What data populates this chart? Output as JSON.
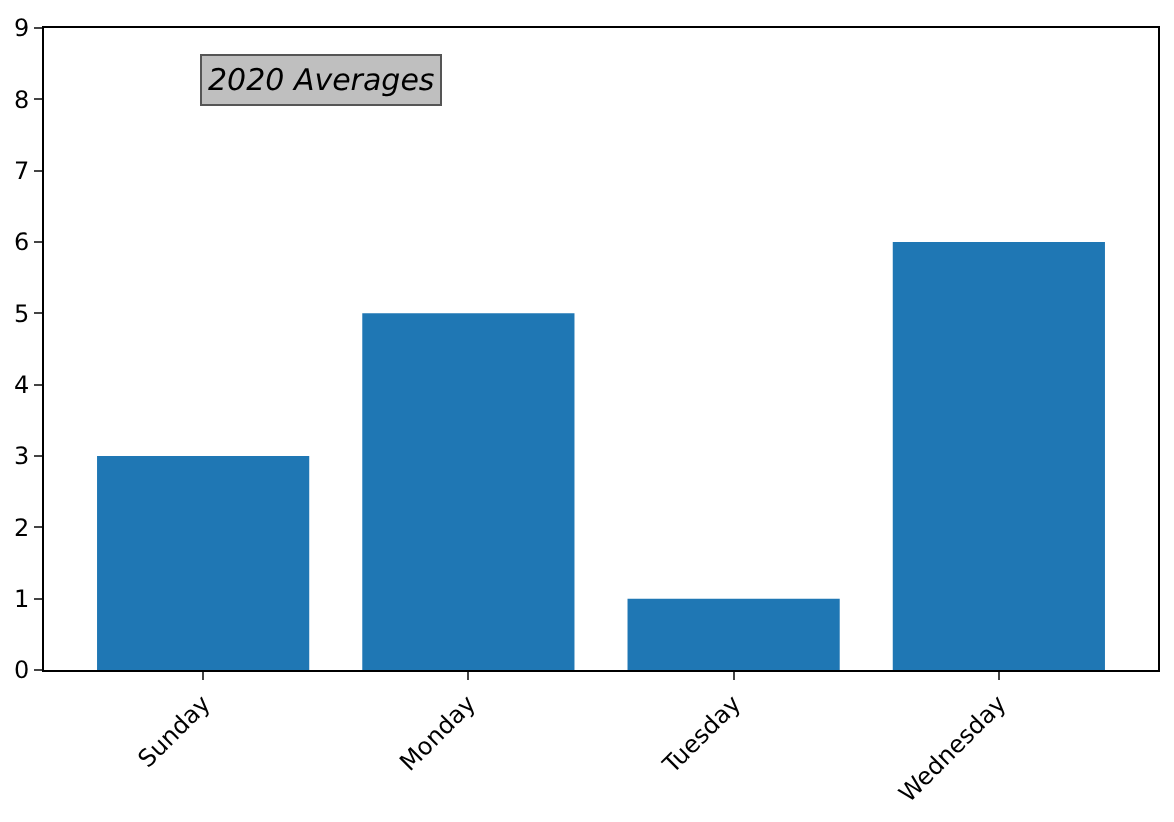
{
  "chart_data": {
    "type": "bar",
    "categories": [
      "Sunday",
      "Monday",
      "Tuesday",
      "Wednesday"
    ],
    "values": [
      3,
      5,
      1,
      6
    ],
    "color": "#1f77b4",
    "ylim": [
      0,
      9
    ],
    "yticks": [
      0,
      1,
      2,
      3,
      4,
      5,
      6,
      7,
      8,
      9
    ],
    "annotations": [
      "2020 Averages"
    ]
  }
}
